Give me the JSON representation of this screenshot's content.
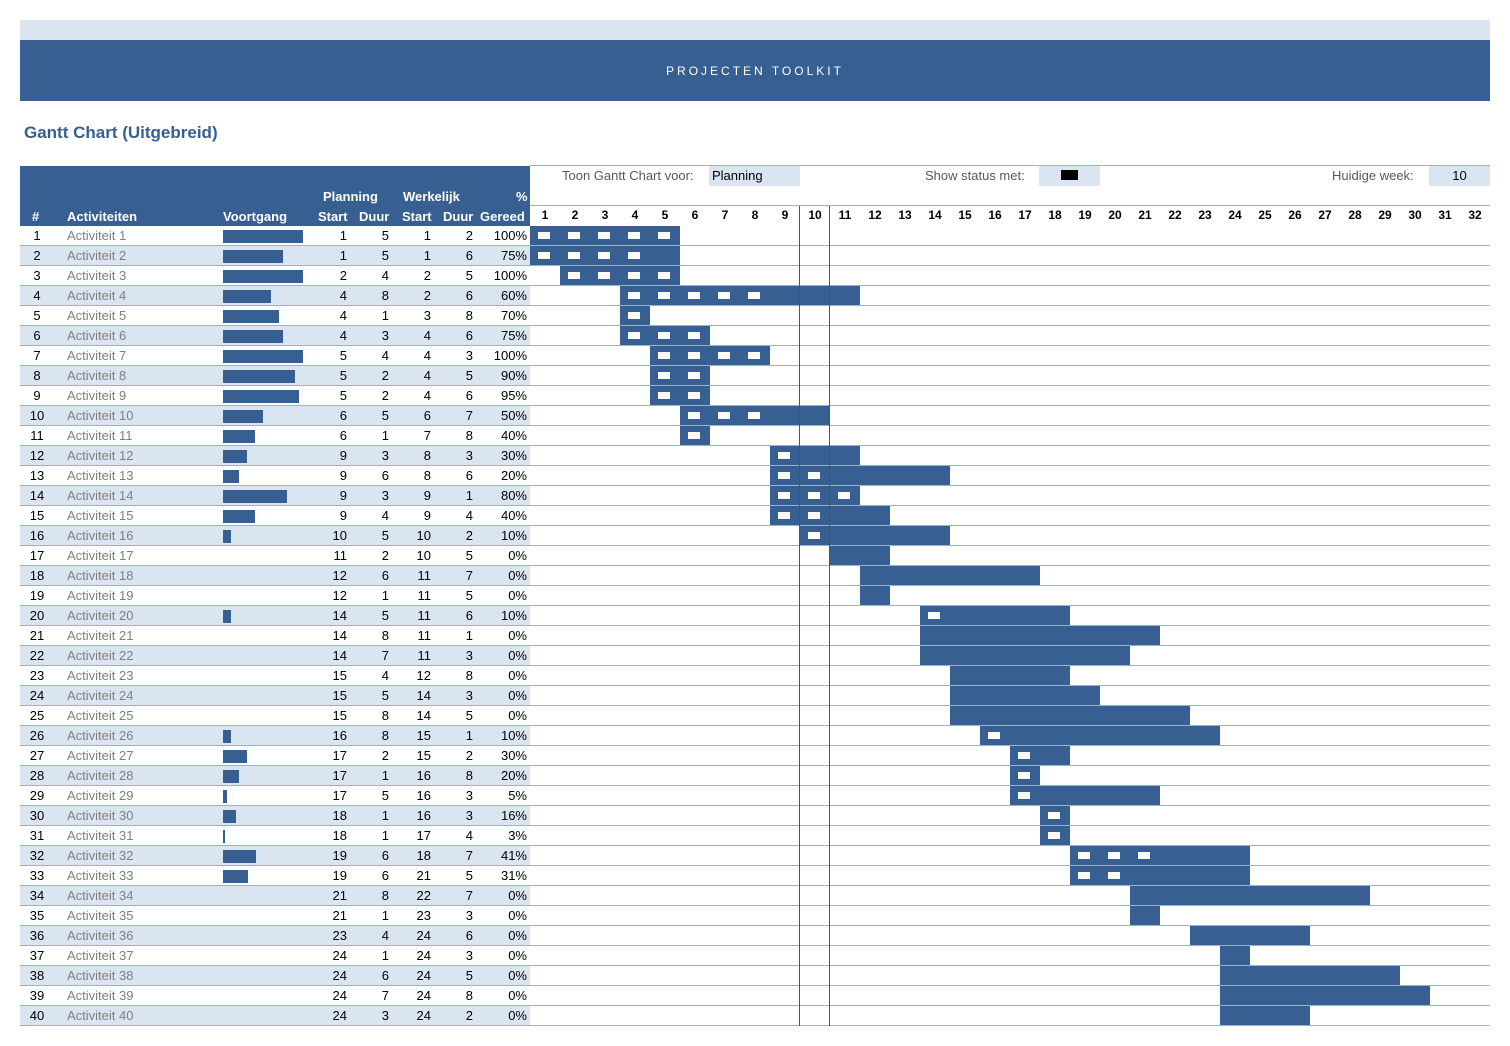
{
  "banner": {
    "title": "PROJECTEN TOOLKIT"
  },
  "page_title": "Gantt Chart (Uitgebreid)",
  "controls": {
    "show_for_label": "Toon Gantt Chart voor:",
    "show_for_value": "Planning",
    "status_label": "Show status met:",
    "status_marker_color": "#000000",
    "current_week_label": "Huidige week:",
    "current_week_value": "10"
  },
  "headers": {
    "num": "#",
    "activity": "Activiteiten",
    "progress": "Voortgang",
    "planning": "Planning",
    "actual": "Werkelijk",
    "pct_top": "%",
    "start": "Start",
    "duration": "Duur",
    "start2": "Start",
    "duration2": "Duur",
    "done": "Gereed"
  },
  "weeks": [
    "1",
    "2",
    "3",
    "4",
    "5",
    "6",
    "7",
    "8",
    "9",
    "10",
    "11",
    "12",
    "13",
    "14",
    "15",
    "16",
    "17",
    "18",
    "19",
    "20",
    "21",
    "22",
    "23",
    "24",
    "25",
    "26",
    "27",
    "28",
    "29",
    "30",
    "31",
    "32"
  ],
  "colors": {
    "bar": "#375f91",
    "stripe": "#dbe5f1",
    "current_week_line": "#8b3a3a"
  },
  "rows": [
    {
      "n": "1",
      "name": "Activiteit 1",
      "ps": "1",
      "pd": "5",
      "ws": "1",
      "wd": "2",
      "pct": "100%"
    },
    {
      "n": "2",
      "name": "Activiteit 2",
      "ps": "1",
      "pd": "5",
      "ws": "1",
      "wd": "6",
      "pct": "75%"
    },
    {
      "n": "3",
      "name": "Activiteit 3",
      "ps": "2",
      "pd": "4",
      "ws": "2",
      "wd": "5",
      "pct": "100%"
    },
    {
      "n": "4",
      "name": "Activiteit 4",
      "ps": "4",
      "pd": "8",
      "ws": "2",
      "wd": "6",
      "pct": "60%"
    },
    {
      "n": "5",
      "name": "Activiteit 5",
      "ps": "4",
      "pd": "1",
      "ws": "3",
      "wd": "8",
      "pct": "70%"
    },
    {
      "n": "6",
      "name": "Activiteit 6",
      "ps": "4",
      "pd": "3",
      "ws": "4",
      "wd": "6",
      "pct": "75%"
    },
    {
      "n": "7",
      "name": "Activiteit 7",
      "ps": "5",
      "pd": "4",
      "ws": "4",
      "wd": "3",
      "pct": "100%"
    },
    {
      "n": "8",
      "name": "Activiteit 8",
      "ps": "5",
      "pd": "2",
      "ws": "4",
      "wd": "5",
      "pct": "90%"
    },
    {
      "n": "9",
      "name": "Activiteit 9",
      "ps": "5",
      "pd": "2",
      "ws": "4",
      "wd": "6",
      "pct": "95%"
    },
    {
      "n": "10",
      "name": "Activiteit 10",
      "ps": "6",
      "pd": "5",
      "ws": "6",
      "wd": "7",
      "pct": "50%"
    },
    {
      "n": "11",
      "name": "Activiteit 11",
      "ps": "6",
      "pd": "1",
      "ws": "7",
      "wd": "8",
      "pct": "40%"
    },
    {
      "n": "12",
      "name": "Activiteit 12",
      "ps": "9",
      "pd": "3",
      "ws": "8",
      "wd": "3",
      "pct": "30%"
    },
    {
      "n": "13",
      "name": "Activiteit 13",
      "ps": "9",
      "pd": "6",
      "ws": "8",
      "wd": "6",
      "pct": "20%"
    },
    {
      "n": "14",
      "name": "Activiteit 14",
      "ps": "9",
      "pd": "3",
      "ws": "9",
      "wd": "1",
      "pct": "80%"
    },
    {
      "n": "15",
      "name": "Activiteit 15",
      "ps": "9",
      "pd": "4",
      "ws": "9",
      "wd": "4",
      "pct": "40%"
    },
    {
      "n": "16",
      "name": "Activiteit 16",
      "ps": "10",
      "pd": "5",
      "ws": "10",
      "wd": "2",
      "pct": "10%"
    },
    {
      "n": "17",
      "name": "Activiteit 17",
      "ps": "11",
      "pd": "2",
      "ws": "10",
      "wd": "5",
      "pct": "0%"
    },
    {
      "n": "18",
      "name": "Activiteit 18",
      "ps": "12",
      "pd": "6",
      "ws": "11",
      "wd": "7",
      "pct": "0%"
    },
    {
      "n": "19",
      "name": "Activiteit 19",
      "ps": "12",
      "pd": "1",
      "ws": "11",
      "wd": "5",
      "pct": "0%"
    },
    {
      "n": "20",
      "name": "Activiteit 20",
      "ps": "14",
      "pd": "5",
      "ws": "11",
      "wd": "6",
      "pct": "10%"
    },
    {
      "n": "21",
      "name": "Activiteit 21",
      "ps": "14",
      "pd": "8",
      "ws": "11",
      "wd": "1",
      "pct": "0%"
    },
    {
      "n": "22",
      "name": "Activiteit 22",
      "ps": "14",
      "pd": "7",
      "ws": "11",
      "wd": "3",
      "pct": "0%"
    },
    {
      "n": "23",
      "name": "Activiteit 23",
      "ps": "15",
      "pd": "4",
      "ws": "12",
      "wd": "8",
      "pct": "0%"
    },
    {
      "n": "24",
      "name": "Activiteit 24",
      "ps": "15",
      "pd": "5",
      "ws": "14",
      "wd": "3",
      "pct": "0%"
    },
    {
      "n": "25",
      "name": "Activiteit 25",
      "ps": "15",
      "pd": "8",
      "ws": "14",
      "wd": "5",
      "pct": "0%"
    },
    {
      "n": "26",
      "name": "Activiteit 26",
      "ps": "16",
      "pd": "8",
      "ws": "15",
      "wd": "1",
      "pct": "10%"
    },
    {
      "n": "27",
      "name": "Activiteit 27",
      "ps": "17",
      "pd": "2",
      "ws": "15",
      "wd": "2",
      "pct": "30%"
    },
    {
      "n": "28",
      "name": "Activiteit 28",
      "ps": "17",
      "pd": "1",
      "ws": "16",
      "wd": "8",
      "pct": "20%"
    },
    {
      "n": "29",
      "name": "Activiteit 29",
      "ps": "17",
      "pd": "5",
      "ws": "16",
      "wd": "3",
      "pct": "5%"
    },
    {
      "n": "30",
      "name": "Activiteit 30",
      "ps": "18",
      "pd": "1",
      "ws": "16",
      "wd": "3",
      "pct": "16%"
    },
    {
      "n": "31",
      "name": "Activiteit 31",
      "ps": "18",
      "pd": "1",
      "ws": "17",
      "wd": "4",
      "pct": "3%"
    },
    {
      "n": "32",
      "name": "Activiteit 32",
      "ps": "19",
      "pd": "6",
      "ws": "18",
      "wd": "7",
      "pct": "41%"
    },
    {
      "n": "33",
      "name": "Activiteit 33",
      "ps": "19",
      "pd": "6",
      "ws": "21",
      "wd": "5",
      "pct": "31%"
    },
    {
      "n": "34",
      "name": "Activiteit 34",
      "ps": "21",
      "pd": "8",
      "ws": "22",
      "wd": "7",
      "pct": "0%"
    },
    {
      "n": "35",
      "name": "Activiteit 35",
      "ps": "21",
      "pd": "1",
      "ws": "23",
      "wd": "3",
      "pct": "0%"
    },
    {
      "n": "36",
      "name": "Activiteit 36",
      "ps": "23",
      "pd": "4",
      "ws": "24",
      "wd": "6",
      "pct": "0%"
    },
    {
      "n": "37",
      "name": "Activiteit 37",
      "ps": "24",
      "pd": "1",
      "ws": "24",
      "wd": "3",
      "pct": "0%"
    },
    {
      "n": "38",
      "name": "Activiteit 38",
      "ps": "24",
      "pd": "6",
      "ws": "24",
      "wd": "5",
      "pct": "0%"
    },
    {
      "n": "39",
      "name": "Activiteit 39",
      "ps": "24",
      "pd": "7",
      "ws": "24",
      "wd": "8",
      "pct": "0%"
    },
    {
      "n": "40",
      "name": "Activiteit 40",
      "ps": "24",
      "pd": "3",
      "ws": "24",
      "wd": "2",
      "pct": "0%"
    }
  ]
}
